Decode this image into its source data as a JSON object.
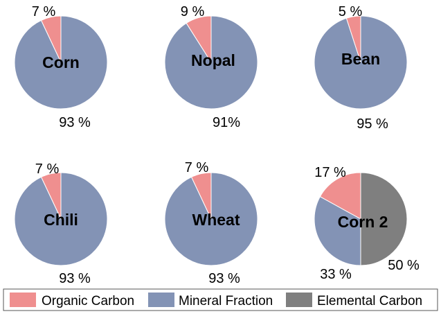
{
  "chart_data": {
    "type": "pie",
    "legend": {
      "placement": "bottom",
      "entries": [
        {
          "label": "Organic Carbon",
          "color": "#ef8f8f"
        },
        {
          "label": "Mineral Fraction",
          "color": "#8393b5"
        },
        {
          "label": "Elemental Carbon",
          "color": "#7f7f7f"
        }
      ]
    },
    "charts": [
      {
        "name": "Corn",
        "slices": [
          {
            "series": "Organic Carbon",
            "value": 7,
            "label": "7 %"
          },
          {
            "series": "Mineral Fraction",
            "value": 93,
            "label": "93 %"
          }
        ]
      },
      {
        "name": "Nopal",
        "slices": [
          {
            "series": "Organic Carbon",
            "value": 9,
            "label": "9 %"
          },
          {
            "series": "Mineral Fraction",
            "value": 91,
            "label": "91%"
          }
        ]
      },
      {
        "name": "Bean",
        "slices": [
          {
            "series": "Organic Carbon",
            "value": 5,
            "label": "5 %"
          },
          {
            "series": "Mineral Fraction",
            "value": 95,
            "label": "95 %"
          }
        ]
      },
      {
        "name": "Chili",
        "slices": [
          {
            "series": "Organic Carbon",
            "value": 7,
            "label": "7 %"
          },
          {
            "series": "Mineral Fraction",
            "value": 93,
            "label": "93 %"
          }
        ]
      },
      {
        "name": "Wheat",
        "slices": [
          {
            "series": "Organic Carbon",
            "value": 7,
            "label": "7 %"
          },
          {
            "series": "Mineral Fraction",
            "value": 93,
            "label": "93 %"
          }
        ]
      },
      {
        "name": "Corn 2",
        "slices": [
          {
            "series": "Organic Carbon",
            "value": 17,
            "label": "17 %"
          },
          {
            "series": "Mineral Fraction",
            "value": 33,
            "label": "33 %"
          },
          {
            "series": "Elemental Carbon",
            "value": 50,
            "label": "50 %"
          }
        ]
      }
    ]
  }
}
